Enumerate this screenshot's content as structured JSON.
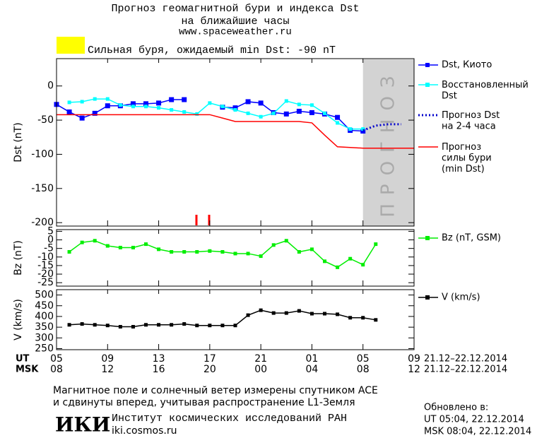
{
  "header": {
    "title": "Прогноз геомагнитной бури и индекса Dst\nна ближайшие часы",
    "url": "www.spaceweather.ru",
    "alert": "Сильная буря, ожидаемый min Dst: -90 nT",
    "alert_color": "#ffff00"
  },
  "chart_data": [
    {
      "type": "line",
      "y_label": "Dst (nT)",
      "ylim": [
        -205,
        40
      ],
      "yticks": [
        0,
        -50,
        -100,
        -150,
        -200
      ],
      "forecast_label": "ПРОГНОЗ",
      "x_axis_labels": [
        "UT",
        "MSK"
      ],
      "date_range": "21.12–22.12.2014",
      "categories": [
        "05",
        null,
        null,
        null,
        "09",
        null,
        null,
        null,
        "13",
        null,
        null,
        null,
        "17",
        null,
        null,
        null,
        "21",
        null,
        null,
        null,
        "01",
        null,
        null,
        null,
        "05",
        null,
        null,
        null,
        "09"
      ],
      "msk_categories": [
        "08",
        null,
        null,
        null,
        "12",
        null,
        null,
        null,
        "16",
        null,
        null,
        null,
        "20",
        null,
        null,
        null,
        "00",
        null,
        null,
        null,
        "04",
        null,
        null,
        null,
        "08",
        null,
        null,
        null,
        "12"
      ],
      "series": [
        {
          "name": "Dst, Киото",
          "color": "#0000ff",
          "style": "solid",
          "marker": "big",
          "values": [
            -27,
            -38,
            -47,
            -40,
            -29,
            -29,
            -26,
            -26,
            -25,
            -20,
            -20,
            null,
            null,
            -31,
            -32,
            -23,
            -25,
            -39,
            -41,
            -37,
            -39,
            -41,
            -46,
            -65,
            -66,
            null,
            null,
            null,
            null
          ]
        },
        {
          "name": "Восстановленный\nDst",
          "color": "#00ffff",
          "style": "solid",
          "marker": "small",
          "values": [
            null,
            -24,
            -23,
            -19,
            -19,
            -28,
            -30,
            -30,
            -32,
            -35,
            -38,
            -41,
            -25,
            -30,
            -35,
            -40,
            -45,
            -40,
            -22,
            -27,
            -28,
            -40,
            -54,
            -63,
            -63,
            null,
            null,
            null,
            null
          ]
        },
        {
          "name": "Прогноз Dst\nна 2-4 часа",
          "color": "#0000cc",
          "style": "dotted",
          "marker": "none",
          "forecast": true,
          "values": [
            null,
            null,
            null,
            null,
            null,
            null,
            null,
            null,
            null,
            null,
            null,
            null,
            null,
            null,
            null,
            null,
            null,
            null,
            null,
            null,
            null,
            null,
            null,
            null,
            -65,
            -58,
            -56,
            -56,
            null
          ]
        },
        {
          "name": "Прогноз\nсилы бури\n(min Dst)",
          "color": "#ff0000",
          "style": "solid",
          "marker": "none",
          "values": [
            -42,
            -42,
            -42,
            -42,
            -42,
            -42,
            -42,
            -42,
            -42,
            -42,
            -42,
            -42,
            -42,
            -47,
            -52,
            -52,
            -52,
            -52,
            -52,
            -52,
            -54,
            -72,
            -89,
            -90,
            -91,
            -91,
            -91,
            -91,
            -91
          ]
        }
      ]
    },
    {
      "type": "line",
      "y_label": "Bz (nT)",
      "ylim": [
        -27,
        6
      ],
      "yticks": [
        5,
        0,
        -5,
        -10,
        -15,
        -20,
        -25
      ],
      "series": [
        {
          "name": "Bz (nT, GSM)",
          "color": "#00ee00",
          "style": "solid",
          "marker": "small",
          "values": [
            null,
            -7,
            -1.5,
            -0.5,
            -3.5,
            -4.5,
            -4.5,
            -2.5,
            -5.5,
            -7,
            -7,
            -7,
            -6.5,
            -7,
            -8,
            -8,
            -9.5,
            -3,
            -0.5,
            -7,
            -5.5,
            -12.5,
            -16,
            -11,
            -14.5,
            -2.5,
            null,
            null,
            null
          ]
        }
      ]
    },
    {
      "type": "line",
      "y_label": "V (km/s)",
      "ylim": [
        245,
        525
      ],
      "yticks": [
        500,
        450,
        400,
        350,
        300,
        250
      ],
      "series": [
        {
          "name": "V (km/s)",
          "color": "#000000",
          "style": "solid",
          "marker": "small",
          "values": [
            null,
            361,
            365,
            361,
            358,
            352,
            352,
            361,
            361,
            361,
            365,
            358,
            358,
            358,
            358,
            406,
            429,
            416,
            416,
            426,
            413,
            413,
            410,
            394,
            394,
            384,
            null,
            null,
            null
          ]
        }
      ]
    }
  ],
  "footer": {
    "note": "Магнитное поле и солнечный ветер измерены спутником ACE\nи сдвинуты вперед, учитывая распространение L1-Земля",
    "logo": "ИКИ",
    "institute": "Институт космических исследований РАН",
    "site": "iki.cosmos.ru",
    "updated": "Обновлено в:",
    "updated_ut": "UT  05:04, 22.12.2014",
    "updated_msk": "MSK 08:04, 22.12.2014"
  }
}
